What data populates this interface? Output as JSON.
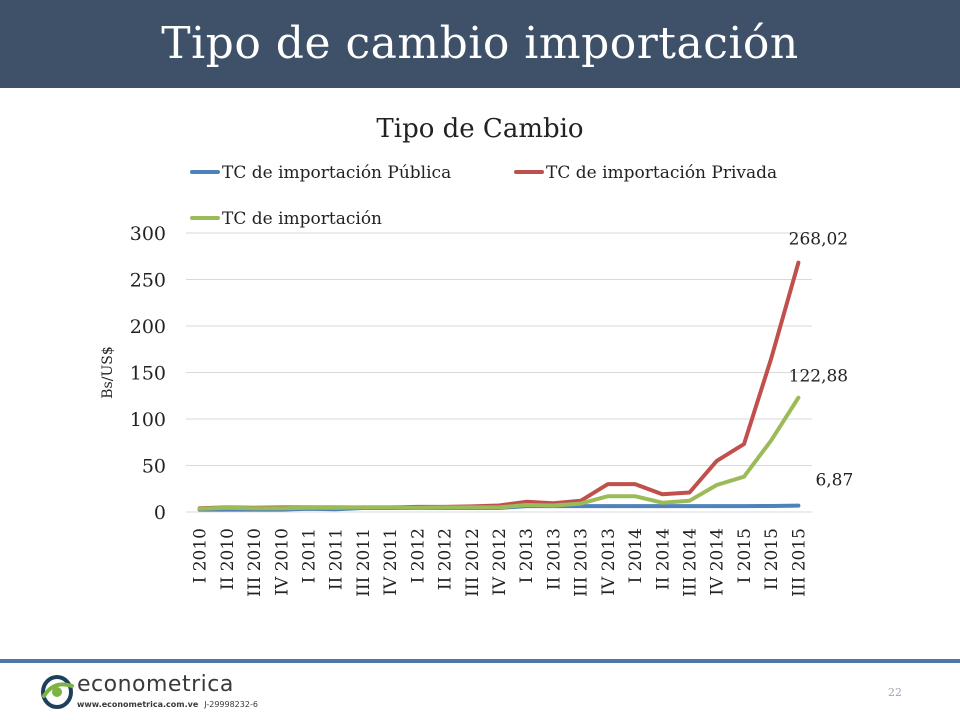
{
  "slide": {
    "title": "Tipo de cambio importación",
    "page_number": "22"
  },
  "logo": {
    "name": "econometrica",
    "url": "www.econometrica.com.ve",
    "rif": "J-29998232-6",
    "colors": {
      "dark": "#1f3f5e",
      "green": "#7cb342"
    }
  },
  "chart_data": {
    "type": "line",
    "title": "Tipo de Cambio",
    "ylabel": "Bs/US$",
    "xlabel": "",
    "ylim": [
      0,
      300
    ],
    "yticks": [
      0,
      50,
      100,
      150,
      200,
      250,
      300
    ],
    "grid": true,
    "legend": "top",
    "categories": [
      "I 2010",
      "II 2010",
      "III 2010",
      "IV 2010",
      "I 2011",
      "II 2011",
      "III 2011",
      "IV 2011",
      "I 2012",
      "II 2012",
      "III 2012",
      "IV 2012",
      "I 2013",
      "II 2013",
      "III 2013",
      "IV 2013",
      "I 2014",
      "II 2014",
      "III 2014",
      "IV 2014",
      "I 2015",
      "II 2015",
      "III 2015"
    ],
    "series": [
      {
        "name": "TC de importación Pública",
        "color": "#4f81bd",
        "values": [
          2.6,
          2.6,
          2.6,
          2.6,
          3.5,
          3.0,
          4.3,
          4.3,
          4.3,
          4.3,
          4.3,
          4.3,
          6.3,
          6.3,
          6.3,
          6.3,
          6.3,
          6.3,
          6.3,
          6.3,
          6.3,
          6.5,
          6.87
        ],
        "end_label": "6,87"
      },
      {
        "name": "TC de importación Privada",
        "color": "#c0504d",
        "values": [
          4.0,
          5.0,
          4.5,
          5.0,
          5.0,
          5.0,
          5.0,
          5.0,
          5.5,
          5.5,
          6.0,
          7.0,
          11.0,
          9.5,
          12.0,
          30.0,
          30.0,
          19.0,
          21.0,
          55.0,
          73.0,
          165.0,
          268.02
        ],
        "end_label": "268,02"
      },
      {
        "name": "TC de importación",
        "color": "#9bbb59",
        "values": [
          3.5,
          4.5,
          4.0,
          4.0,
          4.5,
          4.5,
          5.0,
          5.0,
          4.5,
          5.0,
          5.0,
          5.0,
          7.5,
          7.0,
          9.0,
          17.0,
          17.0,
          10.0,
          12.0,
          29.0,
          38.0,
          77.0,
          122.88
        ],
        "end_label": "122,88"
      }
    ]
  }
}
